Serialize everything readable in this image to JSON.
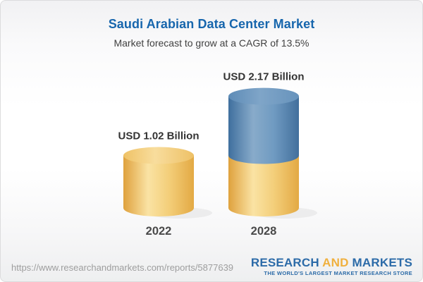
{
  "header": {
    "title": "Saudi Arabian Data Center Market",
    "subtitle": "Market forecast to grow at a CAGR of 13.5%"
  },
  "chart_data": {
    "type": "bar",
    "subtype": "3d-cylinder-stacked",
    "title": "Saudi Arabian Data Center Market",
    "categories": [
      "2022",
      "2028"
    ],
    "values": [
      1.02,
      2.17
    ],
    "value_labels": [
      "USD 1.02 Billion",
      "USD 2.17 Billion"
    ],
    "unit": "USD Billion",
    "cagr_percent": 13.5,
    "legend": "none",
    "gridlines": false,
    "ylim": [
      0,
      2.4
    ],
    "colors": {
      "base_segment": "#F5D283",
      "growth_segment": "#5E8DB8",
      "base_body_stops": [
        "#DFA13D",
        "#FAE3A4",
        "#F3CE79",
        "#E3A944"
      ],
      "base_cap_stops": [
        "#EFC266",
        "#F8DD9D",
        "#EEC167"
      ],
      "growth_body_stops": [
        "#3F6F9E",
        "#88ABCA",
        "#6F9AC1",
        "#426F9C"
      ],
      "growth_cap_stops": [
        "#5E8CB7",
        "#7FA5C8",
        "#6793BC"
      ],
      "value_label_color": "#333333",
      "category_label_color": "#4A4A4A",
      "shadow_color": "#000000"
    }
  },
  "footer": {
    "url": "https://www.researchandmarkets.com/reports/5877639",
    "logo": {
      "word1": "RESEARCH",
      "word2": "AND",
      "word3": "MARKETS",
      "tagline": "THE WORLD'S LARGEST MARKET RESEARCH STORE",
      "blue": "#2C6BA8",
      "gold": "#F0B03D"
    }
  },
  "theme": {
    "title_color": "#1766AD",
    "subtitle_color": "#404040"
  }
}
